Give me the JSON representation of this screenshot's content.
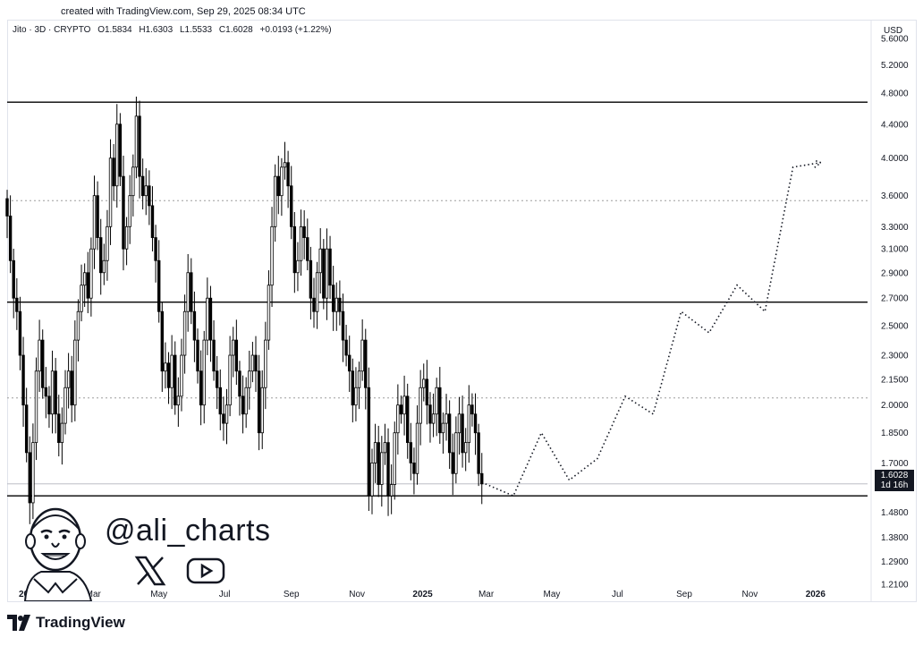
{
  "caption": "created with TradingView.com, Sep 29, 2025 08:34 UTC",
  "legend": {
    "symbol": "Jito · 3D · CRYPTO",
    "open": "O1.5834",
    "high": "H1.6303",
    "low": "L1.5533",
    "close": "C1.6028",
    "change": "+0.0193 (+1.22%)"
  },
  "currency": "USD",
  "price_tag": {
    "price": "1.6028",
    "countdown": "1d 16h"
  },
  "handle": "@ali_charts",
  "brand": "TradingView",
  "colors": {
    "candle_up": "#ffffff",
    "candle_down": "#000000",
    "line": "#000000",
    "dotted": "#9e9e9e"
  },
  "chart_data": {
    "type": "candlestick",
    "y_scale": "log",
    "ylim": [
      1.15,
      5.9
    ],
    "y_ticks": [
      "5.6000",
      "5.2000",
      "4.8000",
      "4.4000",
      "4.0000",
      "3.6000",
      "3.3000",
      "3.1000",
      "2.9000",
      "2.7000",
      "2.5000",
      "2.3000",
      "2.1500",
      "2.0000",
      "1.8500",
      "1.7000",
      "1.4800",
      "1.3800",
      "1.2900",
      "1.2100"
    ],
    "x_ticks": [
      "2024",
      "Mar",
      "May",
      "Jul",
      "Sep",
      "Nov",
      "2025",
      "Mar",
      "May",
      "Jul",
      "Sep",
      "Nov",
      "2026"
    ],
    "x_ticks_bold": [
      "2024",
      "2025",
      "2026"
    ],
    "xlim": [
      "2023-12-12",
      "2026-02-20"
    ],
    "x_tick_dates": [
      "2024-01-01",
      "2024-03-01",
      "2024-05-01",
      "2024-07-01",
      "2024-09-01",
      "2024-11-01",
      "2025-01-01",
      "2025-03-01",
      "2025-05-01",
      "2025-07-01",
      "2025-09-01",
      "2025-11-01",
      "2026-01-01"
    ],
    "horizontal_levels": [
      {
        "price": 4.68,
        "style": "solid"
      },
      {
        "price": 3.55,
        "style": "dotted"
      },
      {
        "price": 2.67,
        "style": "solid"
      },
      {
        "price": 2.04,
        "style": "dotted"
      },
      {
        "price": 1.55,
        "style": "solid"
      }
    ],
    "candles_start": "2023-12-12",
    "candle_interval_days": 3,
    "closes": [
      3.4,
      3.0,
      2.7,
      2.6,
      2.3,
      2.0,
      1.75,
      1.52,
      1.8,
      2.2,
      2.4,
      2.1,
      2.05,
      1.95,
      2.2,
      1.95,
      1.8,
      1.9,
      2.1,
      2.2,
      2.0,
      2.4,
      2.6,
      2.8,
      2.9,
      2.7,
      3.1,
      3.6,
      3.2,
      2.9,
      3.0,
      3.3,
      4.0,
      3.7,
      4.4,
      3.8,
      3.1,
      3.3,
      3.6,
      3.9,
      4.5,
      3.8,
      3.6,
      3.7,
      3.5,
      3.2,
      3.0,
      2.6,
      2.2,
      2.25,
      2.1,
      2.3,
      2.0,
      2.05,
      2.3,
      2.6,
      2.9,
      2.6,
      2.4,
      2.2,
      2.0,
      2.4,
      2.7,
      2.4,
      2.2,
      2.1,
      1.95,
      1.9,
      2.0,
      2.3,
      2.4,
      2.2,
      2.05,
      1.95,
      2.1,
      2.2,
      2.3,
      2.2,
      1.85,
      2.1,
      2.4,
      2.8,
      3.3,
      3.8,
      3.6,
      3.9,
      3.95,
      3.7,
      3.3,
      2.9,
      3.0,
      3.3,
      3.2,
      3.0,
      2.7,
      2.6,
      2.9,
      3.1,
      2.7,
      3.1,
      2.8,
      2.6,
      2.7,
      2.6,
      2.4,
      2.3,
      2.2,
      2.0,
      2.1,
      2.2,
      2.4,
      2.1,
      1.55,
      1.7,
      1.8,
      1.6,
      1.75,
      1.8,
      1.55,
      1.6,
      1.85,
      2.0,
      1.95,
      2.05,
      1.8,
      1.7,
      1.65,
      1.9,
      2.1,
      2.15,
      2.0,
      1.9,
      1.95,
      2.1,
      1.85,
      1.9,
      1.95,
      1.75,
      1.65,
      1.85,
      1.95,
      1.75,
      1.8,
      2.0,
      1.95,
      1.85,
      1.65,
      1.6
    ],
    "last_close": 1.6028,
    "projection": [
      [
        1.55,
        1.85
      ],
      [
        1.62,
        1.72
      ],
      [
        2.05,
        1.95
      ],
      [
        2.6,
        2.45
      ],
      [
        2.8,
        2.6
      ],
      [
        3.9,
        3.95
      ]
    ]
  }
}
